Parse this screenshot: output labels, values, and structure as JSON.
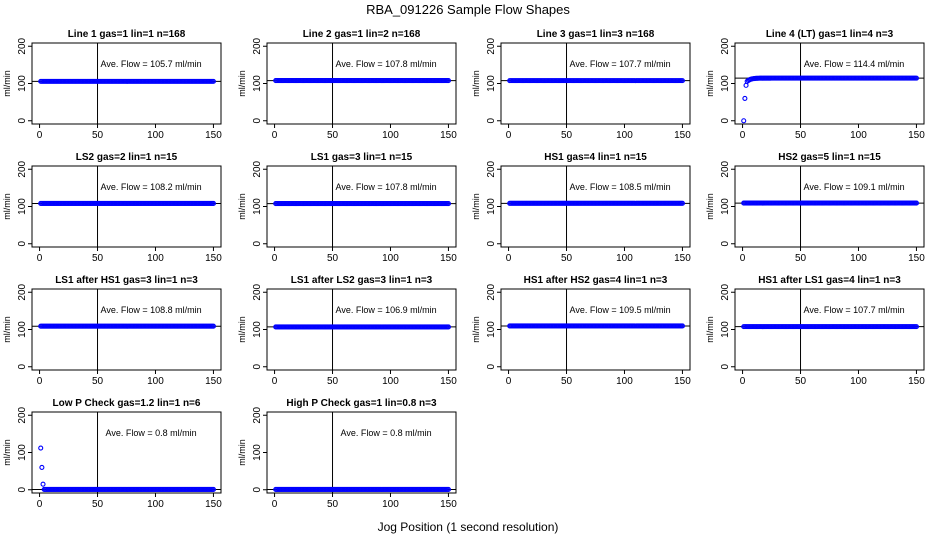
{
  "chart_data": {
    "type": "scatter",
    "title": "RBA_091226  Sample Flow Shapes",
    "xlabel": "Jog Position (1 second resolution)",
    "ylabel": "ml/min",
    "xlim": [
      0,
      150
    ],
    "ylim": [
      0,
      200
    ],
    "xticks": [
      0,
      50,
      100,
      150
    ],
    "yticks": [
      0,
      100,
      200
    ],
    "vline_x": 50,
    "point_color": "#0000ff",
    "panels": [
      {
        "title": "Line 1 gas=1 lin=1 n=168",
        "avg": 105.7,
        "annotation": "Ave. Flow = 105.7  ml/min",
        "shape": "flat",
        "level": 105.7
      },
      {
        "title": "Line 2 gas=1 lin=2 n=168",
        "avg": 107.8,
        "annotation": "Ave. Flow = 107.8  ml/min",
        "shape": "flat",
        "level": 107.8
      },
      {
        "title": "Line 3 gas=1 lin=3 n=168",
        "avg": 107.7,
        "annotation": "Ave. Flow = 107.7  ml/min",
        "shape": "flat",
        "level": 107.7
      },
      {
        "title": "Line 4 (LT) gas=1 lin=4 n=3",
        "avg": 114.4,
        "annotation": "Ave. Flow = 114.4  ml/min",
        "shape": "rise",
        "level": 114.4
      },
      {
        "title": "LS2 gas=2 lin=1 n=15",
        "avg": 108.2,
        "annotation": "Ave. Flow = 108.2  ml/min",
        "shape": "flat",
        "level": 108.2
      },
      {
        "title": "LS1 gas=3 lin=1 n=15",
        "avg": 107.8,
        "annotation": "Ave. Flow = 107.8  ml/min",
        "shape": "flat",
        "level": 107.8
      },
      {
        "title": "HS1 gas=4 lin=1 n=15",
        "avg": 108.5,
        "annotation": "Ave. Flow = 108.5  ml/min",
        "shape": "flat",
        "level": 108.5
      },
      {
        "title": "HS2 gas=5 lin=1 n=15",
        "avg": 109.1,
        "annotation": "Ave. Flow = 109.1  ml/min",
        "shape": "flat",
        "level": 109.1
      },
      {
        "title": "LS1 after HS1 gas=3 lin=1 n=3",
        "avg": 108.8,
        "annotation": "Ave. Flow = 108.8  ml/min",
        "shape": "flat",
        "level": 108.8
      },
      {
        "title": "LS1 after LS2 gas=3 lin=1 n=3",
        "avg": 106.9,
        "annotation": "Ave. Flow = 106.9  ml/min",
        "shape": "flat",
        "level": 106.9
      },
      {
        "title": "HS1 after HS2 gas=4 lin=1 n=3",
        "avg": 109.5,
        "annotation": "Ave. Flow = 109.5  ml/min",
        "shape": "flat",
        "level": 109.5
      },
      {
        "title": "HS1 after LS1 gas=4 lin=1 n=3",
        "avg": 107.7,
        "annotation": "Ave. Flow = 107.7  ml/min",
        "shape": "flat",
        "level": 107.7
      },
      {
        "title": "Low P Check gas=1.2 lin=1 n=6",
        "avg": 0.8,
        "annotation": "Ave. Flow = 0.8  ml/min",
        "shape": "decay",
        "level": 0.8
      },
      {
        "title": "High P Check gas=1 lin=0.8 n=3",
        "avg": 0.8,
        "annotation": "Ave. Flow = 0.8  ml/min",
        "shape": "flat",
        "level": 0.8
      }
    ]
  }
}
